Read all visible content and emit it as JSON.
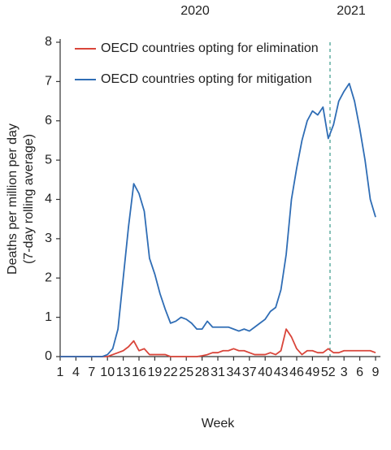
{
  "chart_data": {
    "type": "line",
    "y_label": [
      "Deaths per million per day",
      "(7-day rolling average)"
    ],
    "x_label": "Week",
    "annotations": [
      "2020",
      "2021"
    ],
    "categories": [
      "1",
      null,
      null,
      "4",
      null,
      null,
      "7",
      null,
      null,
      "10",
      null,
      null,
      "13",
      null,
      null,
      "16",
      null,
      null,
      "19",
      null,
      null,
      "22",
      null,
      null,
      "25",
      null,
      null,
      "28",
      null,
      null,
      "31",
      null,
      null,
      "34",
      null,
      null,
      "37",
      null,
      null,
      "40",
      null,
      null,
      "43",
      null,
      null,
      "46",
      null,
      null,
      "49",
      null,
      null,
      "52",
      null,
      null,
      "3",
      null,
      null,
      "6",
      null,
      null,
      "9"
    ],
    "series": [
      {
        "name": "OECD countries opting for elimination",
        "color": "#d9453a",
        "values": [
          0,
          0,
          0,
          0,
          0,
          0,
          0,
          0,
          0,
          0,
          0.05,
          0.1,
          0.15,
          0.25,
          0.4,
          0.15,
          0.2,
          0.05,
          0.05,
          0.05,
          0.05,
          0,
          0,
          0,
          0,
          0,
          0,
          0.02,
          0.05,
          0.1,
          0.1,
          0.15,
          0.15,
          0.2,
          0.15,
          0.15,
          0.1,
          0.05,
          0.05,
          0.05,
          0.1,
          0.05,
          0.15,
          0.7,
          0.5,
          0.2,
          0.05,
          0.15,
          0.15,
          0.1,
          0.1,
          0.2,
          0.1,
          0.1,
          0.15,
          0.15,
          0.15,
          0.15,
          0.15,
          0.15,
          0.1
        ]
      },
      {
        "name": "OECD countries opting for mitigation",
        "color": "#2f6db5",
        "values": [
          0,
          0,
          0,
          0,
          0,
          0,
          0,
          0,
          0,
          0.05,
          0.2,
          0.7,
          2.0,
          3.3,
          4.4,
          4.15,
          3.7,
          2.5,
          2.1,
          1.6,
          1.2,
          0.85,
          0.9,
          1.0,
          0.95,
          0.85,
          0.7,
          0.7,
          0.9,
          0.75,
          0.75,
          0.75,
          0.75,
          0.7,
          0.65,
          0.7,
          0.65,
          0.75,
          0.85,
          0.95,
          1.15,
          1.25,
          1.7,
          2.6,
          4.0,
          4.8,
          5.5,
          6.0,
          6.25,
          6.15,
          6.35,
          5.55,
          5.9,
          6.5,
          6.75,
          6.95,
          6.5,
          5.8,
          5.0,
          4.0,
          3.55
        ]
      }
    ],
    "ylim": [
      0,
      8
    ],
    "yticks": [
      0,
      1,
      2,
      3,
      4,
      5,
      6,
      7,
      8
    ],
    "grid": false
  }
}
